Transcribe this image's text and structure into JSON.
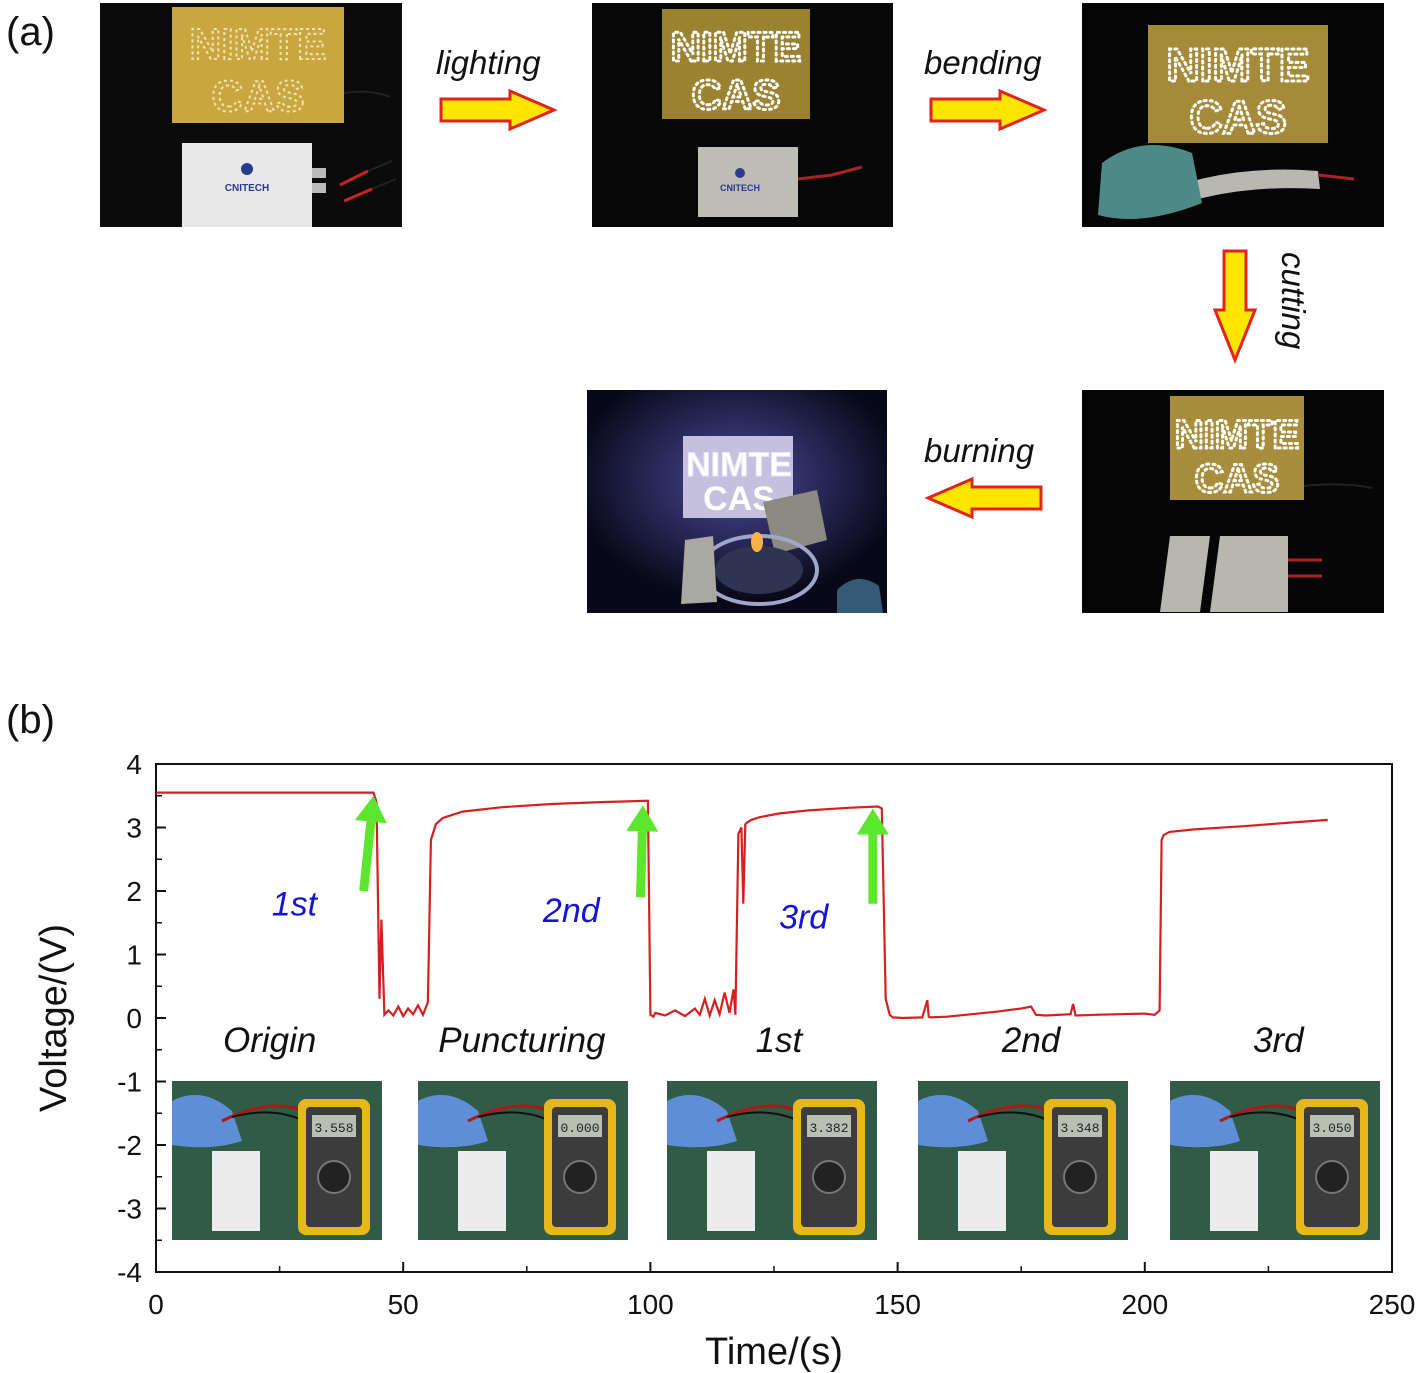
{
  "panel_a": {
    "label": "(a)",
    "photos": [
      {
        "id": "origin",
        "sign_line1": "NIMTE",
        "sign_line2": "CAS",
        "battery_brand": "CNITECH",
        "lit": false
      },
      {
        "id": "lighting",
        "sign_line1": "NIMTE",
        "sign_line2": "CAS",
        "battery_brand": "CNITECH",
        "lit": true
      },
      {
        "id": "bending",
        "sign_line1": "NIMTE",
        "sign_line2": "CAS",
        "lit": true
      },
      {
        "id": "cutting",
        "sign_line1": "NIMTE",
        "sign_line2": "CAS",
        "lit": true
      },
      {
        "id": "burning",
        "sign_line1": "NIMTE",
        "sign_line2": "CAS",
        "lit": true
      }
    ],
    "arrows": [
      {
        "label": "lighting",
        "direction": "right"
      },
      {
        "label": "bending",
        "direction": "right"
      },
      {
        "label": "cutting",
        "direction": "down"
      },
      {
        "label": "burning",
        "direction": "left"
      }
    ],
    "colors": {
      "arrow_fill": "#ffe600",
      "arrow_stroke": "#e0231c"
    }
  },
  "panel_b": {
    "label": "(b)"
  },
  "chart_data": {
    "type": "line",
    "xlabel": "Time/(s)",
    "ylabel": "Voltage/(V)",
    "xlim": [
      0,
      250
    ],
    "ylim": [
      -4,
      4
    ],
    "xticks": [
      0,
      50,
      100,
      150,
      200,
      250
    ],
    "yticks": [
      -4,
      -3,
      -2,
      -1,
      0,
      1,
      2,
      3,
      4
    ],
    "grid": false,
    "line_color": "#d42020",
    "series": [
      {
        "x": [
          0,
          44,
          44.6,
          45.2,
          45.6,
          46.2,
          47,
          48,
          49,
          50,
          51,
          52,
          53,
          54,
          55,
          55.6,
          56.6,
          58,
          62,
          70,
          80,
          90,
          99.5,
          100,
          100.6,
          101,
          103,
          105,
          107,
          109,
          110,
          111,
          112,
          113,
          114,
          115,
          116,
          116.8,
          117.2,
          117.8,
          118.4,
          118.8,
          119.2,
          119.6,
          120.4,
          122,
          126,
          132,
          140,
          146,
          146.8,
          147.6,
          148.4,
          149,
          151,
          155,
          156,
          156.3,
          156.6,
          160,
          165,
          170,
          175,
          177,
          178,
          180,
          185,
          185.5,
          186,
          190,
          195,
          200,
          202,
          203,
          203.4,
          203.8,
          205,
          210,
          220,
          230,
          237
        ],
        "y": [
          3.55,
          3.55,
          3.4,
          0.3,
          1.55,
          0.05,
          0.12,
          0.04,
          0.18,
          0.03,
          0.15,
          0.06,
          0.2,
          0.05,
          0.25,
          2.8,
          3.05,
          3.15,
          3.25,
          3.32,
          3.37,
          3.4,
          3.42,
          0.05,
          0.02,
          0.08,
          0.04,
          0.12,
          0.03,
          0.15,
          0.05,
          0.3,
          0.04,
          0.28,
          0.06,
          0.4,
          0.08,
          0.45,
          0.05,
          2.9,
          3.0,
          1.8,
          3.05,
          3.08,
          3.12,
          3.16,
          3.22,
          3.27,
          3.31,
          3.33,
          3.3,
          0.3,
          0.05,
          0.01,
          0.0,
          0.01,
          0.28,
          0.02,
          0.01,
          0.02,
          0.06,
          0.1,
          0.15,
          0.18,
          0.05,
          0.04,
          0.06,
          0.22,
          0.04,
          0.05,
          0.06,
          0.07,
          0.05,
          0.12,
          2.8,
          2.88,
          2.93,
          2.97,
          3.02,
          3.08,
          3.12
        ]
      }
    ],
    "annotations": [
      {
        "text": "1st",
        "x": 28,
        "y": 1.8,
        "arrow_to": [
          44,
          3.5
        ]
      },
      {
        "text": "2nd",
        "x": 84,
        "y": 1.7,
        "arrow_to": [
          98.5,
          3.35
        ]
      },
      {
        "text": "3rd",
        "x": 131,
        "y": 1.6,
        "arrow_to": [
          145,
          3.3
        ]
      }
    ],
    "annotation_arrow_color": "#5de62e",
    "stage_labels": [
      {
        "text": "Origin",
        "x": 23,
        "y": -0.35
      },
      {
        "text": "Puncturing",
        "x": 74,
        "y": -0.35
      },
      {
        "text": "1st",
        "x": 126,
        "y": -0.35
      },
      {
        "text": "2nd",
        "x": 177,
        "y": -0.35
      },
      {
        "text": "3rd",
        "x": 227,
        "y": -0.35
      }
    ],
    "inset_readings": [
      "3.558",
      "0.000",
      "3.382",
      "3.348",
      "3.050"
    ]
  }
}
